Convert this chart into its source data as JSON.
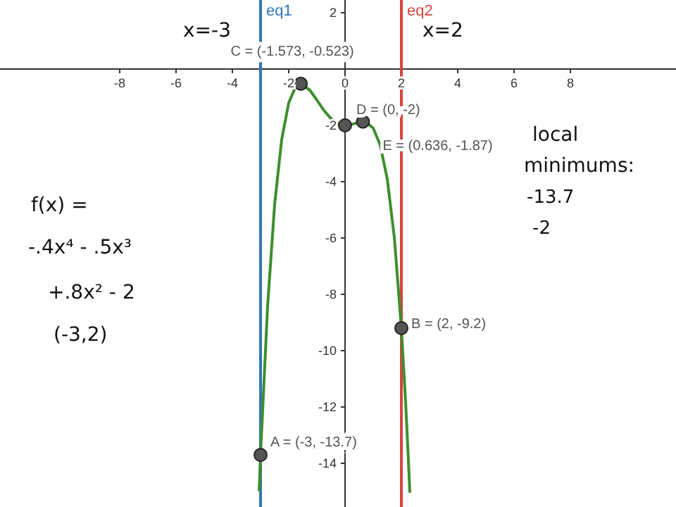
{
  "chart_data": {
    "type": "line",
    "xlim": [
      -12.25,
      11.75
    ],
    "ylim": [
      -15.55,
      2.45
    ],
    "xticks": [
      -8,
      -6,
      -4,
      -2,
      {
        "value": 0,
        "label": "0"
      },
      2,
      4,
      6,
      8
    ],
    "yticks": [
      2,
      -2,
      -4,
      -6,
      -8,
      -10,
      -12,
      -14
    ],
    "grid": false,
    "series": [
      {
        "color": "#3e8e2e",
        "marker": "none",
        "x": [
          -3.05,
          -3,
          -2.75,
          -2.5,
          -2.25,
          -2,
          -1.75,
          -1.573,
          -1.25,
          -1,
          -0.75,
          -0.5,
          -0.25,
          0,
          0.25,
          0.5,
          0.636,
          0.75,
          1,
          1.25,
          1.5,
          1.75,
          2,
          2.15,
          2.25,
          2.3
        ],
        "values": [
          -14.99,
          -13.7,
          -8.43,
          -4.81,
          -2.51,
          -1.2,
          -0.62,
          -0.523,
          -0.75,
          -1.1,
          -1.47,
          -1.76,
          -1.94,
          -2,
          -1.96,
          -1.89,
          -1.87,
          -1.89,
          -2.1,
          -2.7,
          -3.91,
          -5.98,
          -9.2,
          -11.82,
          -13.9,
          -15.04
        ]
      },
      {
        "type": "scatter",
        "color": "#555555",
        "marker": "circle",
        "x": [
          -3,
          2,
          -1.573,
          0,
          0.636
        ],
        "values": [
          -13.7,
          -9.2,
          -0.523,
          -2,
          -1.87
        ]
      }
    ],
    "ref_lines": [
      {
        "axis": "x",
        "value": -3,
        "label": "eq1",
        "color": "#2f78b8"
      },
      {
        "axis": "x",
        "value": 2,
        "label": "eq2",
        "color": "#d64541"
      }
    ],
    "annotations": [
      {
        "text": "A = (-3, -13.7)",
        "x": -3,
        "y": -13.7
      },
      {
        "text": "B = (2, -9.2)",
        "x": 2,
        "y": -9.2
      },
      {
        "text": "C = (-1.573, -0.523)",
        "x": -1.573,
        "y": -0.523
      },
      {
        "text": "D = (0, -2)",
        "x": 0,
        "y": -2
      },
      {
        "text": "E = (0.636, -1.87)",
        "x": 0.636,
        "y": -1.87
      },
      "x=-3",
      "x=2",
      "f(x) =",
      "-.4x⁴ - .5x³",
      "+.8x² - 2",
      "(-3,2)",
      "local",
      "minimums:",
      "-13.7",
      "-2"
    ]
  }
}
